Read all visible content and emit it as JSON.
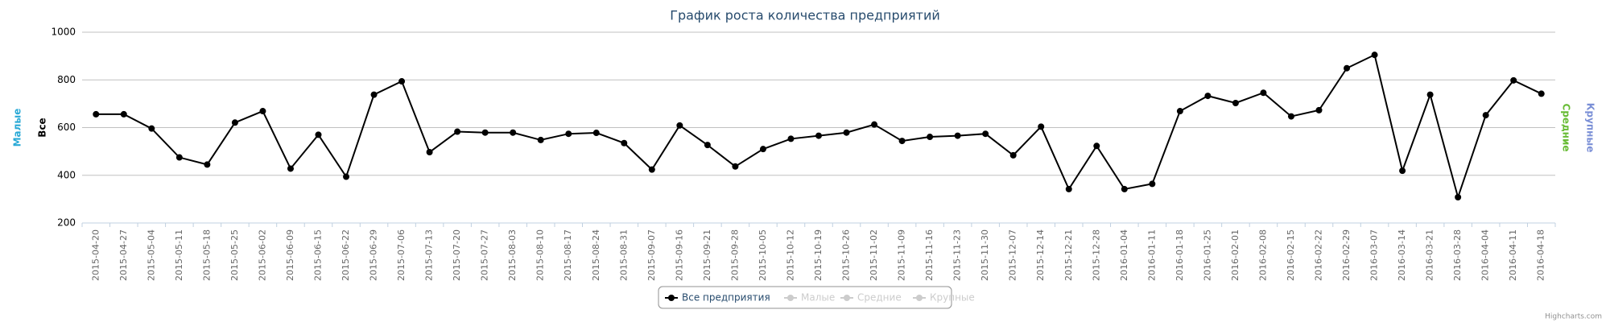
{
  "chart_data": {
    "type": "line",
    "title": "График роста количества предприятий",
    "credits": "Highcharts.com",
    "y_axis_titles": [
      {
        "text": "Малые",
        "color": "#29a9d6",
        "side": "left"
      },
      {
        "text": "Все",
        "color": "#000000",
        "side": "left"
      },
      {
        "text": "Средние",
        "color": "#66bb33",
        "side": "right"
      },
      {
        "text": "Крупные",
        "color": "#7a8fd6",
        "side": "right"
      }
    ],
    "categories": [
      "2015-04-20",
      "2015-04-27",
      "2015-05-04",
      "2015-05-11",
      "2015-05-18",
      "2015-05-25",
      "2015-06-02",
      "2015-06-09",
      "2015-06-15",
      "2015-06-22",
      "2015-06-29",
      "2015-07-06",
      "2015-07-13",
      "2015-07-20",
      "2015-07-27",
      "2015-08-03",
      "2015-08-10",
      "2015-08-17",
      "2015-08-24",
      "2015-08-31",
      "2015-09-07",
      "2015-09-16",
      "2015-09-21",
      "2015-09-28",
      "2015-10-05",
      "2015-10-12",
      "2015-10-19",
      "2015-10-26",
      "2015-11-02",
      "2015-11-09",
      "2015-11-16",
      "2015-11-23",
      "2015-11-30",
      "2015-12-07",
      "2015-12-14",
      "2015-12-21",
      "2015-12-28",
      "2016-01-04",
      "2016-01-11",
      "2016-01-18",
      "2016-01-25",
      "2016-02-01",
      "2016-02-08",
      "2016-02-15",
      "2016-02-22",
      "2016-02-29",
      "2016-03-07",
      "2016-03-14",
      "2016-03-21",
      "2016-03-28",
      "2016-04-04",
      "2016-04-11",
      "2016-04-18"
    ],
    "series": [
      {
        "name": "Все предприятия",
        "color": "#000000",
        "visible": true,
        "values": [
          656,
          656,
          596,
          475,
          445,
          621,
          669,
          428,
          570,
          394,
          738,
          794,
          497,
          583,
          579,
          579,
          548,
          574,
          578,
          535,
          424,
          609,
          527,
          437,
          510,
          553,
          566,
          579,
          613,
          544,
          561,
          566,
          574,
          484,
          604,
          342,
          523,
          342,
          364,
          669,
          733,
          703,
          746,
          647,
          673,
          849,
          905,
          419,
          738,
          308,
          652,
          798,
          742
        ]
      },
      {
        "name": "Малые",
        "color": "#cccccc",
        "visible": false
      },
      {
        "name": "Средние",
        "color": "#cccccc",
        "visible": false
      },
      {
        "name": "Крупные",
        "color": "#cccccc",
        "visible": false
      }
    ],
    "ylim": [
      200,
      1000
    ],
    "yticks": [
      200,
      400,
      600,
      800,
      1000
    ],
    "grid": true
  }
}
